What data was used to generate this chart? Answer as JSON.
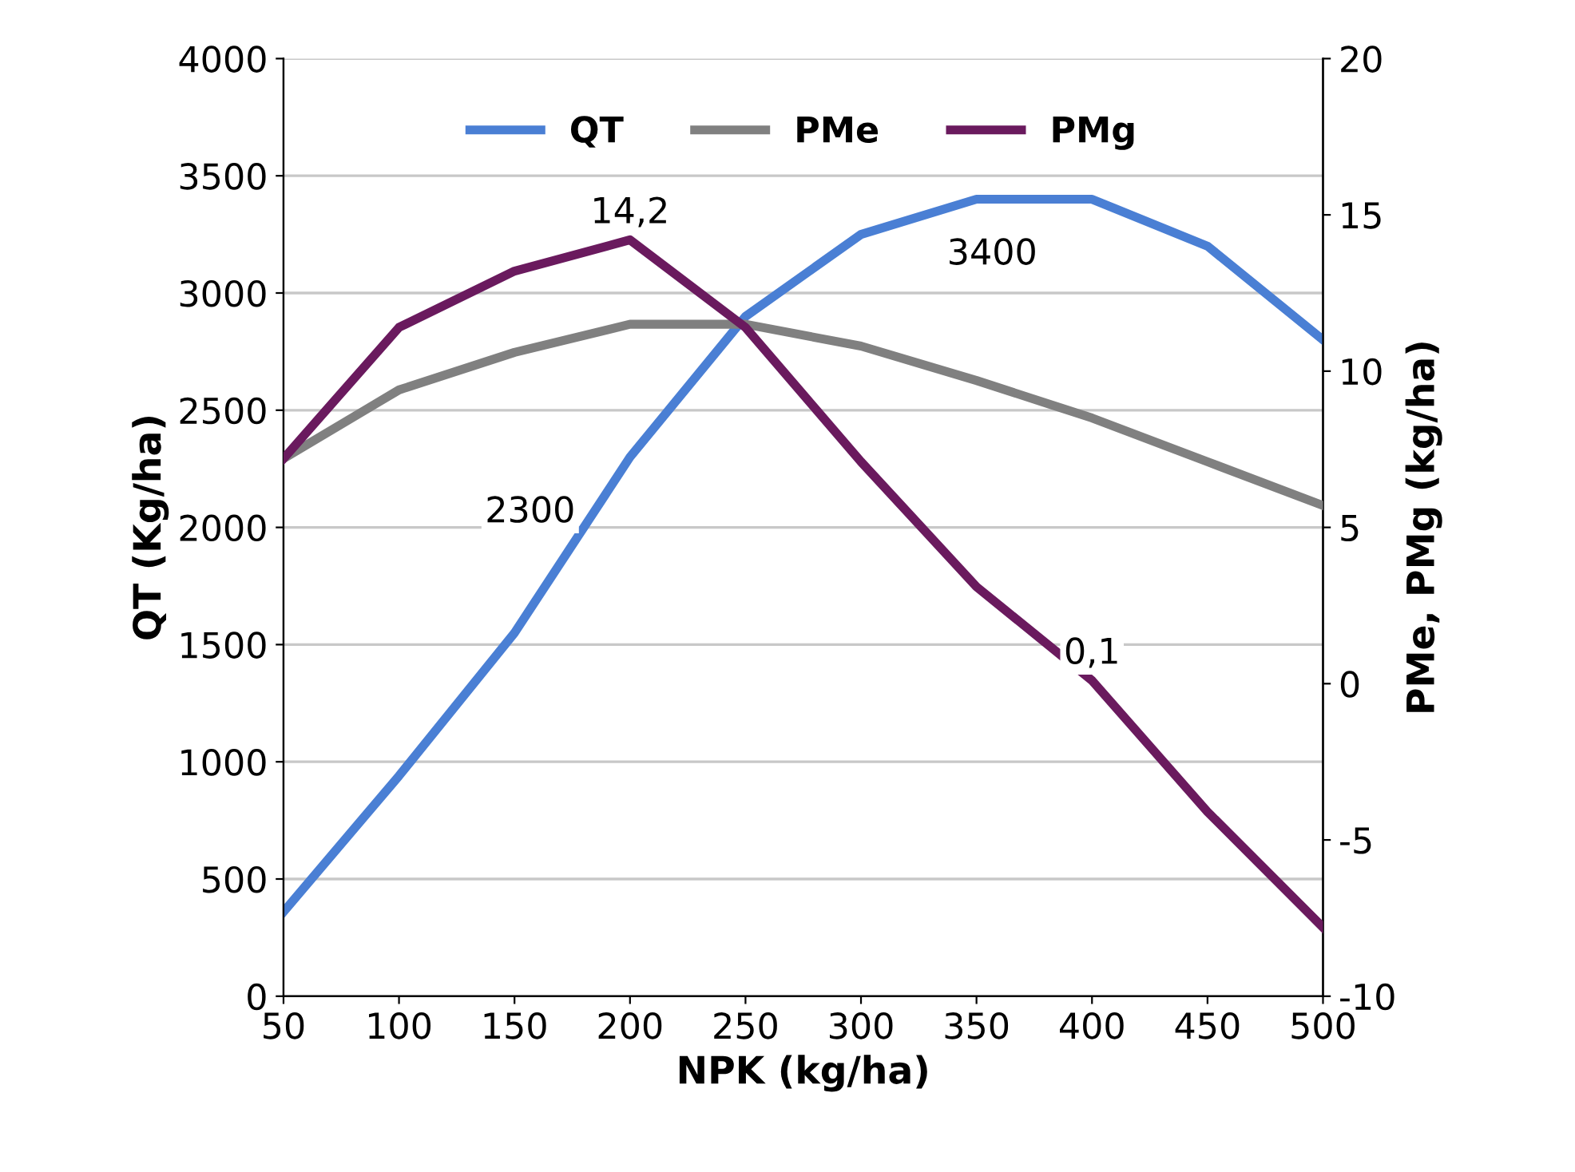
{
  "chart_data": {
    "type": "line",
    "xlabel": "NPK (kg/ha)",
    "ylabel": "QT (Kg/ha)",
    "y2label": "PMe, PMg (kg/ha)",
    "x": [
      50,
      100,
      150,
      200,
      250,
      300,
      350,
      400,
      450,
      500
    ],
    "xlim": [
      50,
      500
    ],
    "xticks": [
      50,
      100,
      150,
      200,
      250,
      300,
      350,
      400,
      450,
      500
    ],
    "ylim": [
      0,
      4000
    ],
    "yticks": [
      0,
      500,
      1000,
      1500,
      2000,
      2500,
      3000,
      3500,
      4000
    ],
    "y2lim": [
      -10,
      20
    ],
    "y2ticks": [
      -10,
      -5,
      0,
      5,
      10,
      15,
      20
    ],
    "grid": "y",
    "legend": "top",
    "series": [
      {
        "name": "QT",
        "color": "#4a7fd4",
        "values": [
          360,
          940,
          1550,
          2300,
          2900,
          3250,
          3400,
          3400,
          3200,
          2800
        ],
        "value_labels": [
          null,
          null,
          null,
          "2300",
          null,
          null,
          null,
          "3400",
          null,
          null
        ]
      },
      {
        "name": "PMe",
        "color": "#808080",
        "axis": "y2",
        "values": [
          7.2,
          9.4,
          10.6,
          11.5,
          11.5,
          10.8,
          9.7,
          8.5,
          7.1,
          5.7
        ]
      },
      {
        "name": "PMg",
        "color": "#6a1a5e",
        "axis": "y2",
        "values": [
          7.2,
          11.4,
          13.2,
          14.2,
          11.4,
          7.1,
          3.1,
          0.1,
          -4.1,
          -7.8
        ],
        "value_labels": [
          null,
          null,
          null,
          "14,2",
          null,
          null,
          null,
          "0,1",
          null,
          null
        ]
      }
    ]
  }
}
